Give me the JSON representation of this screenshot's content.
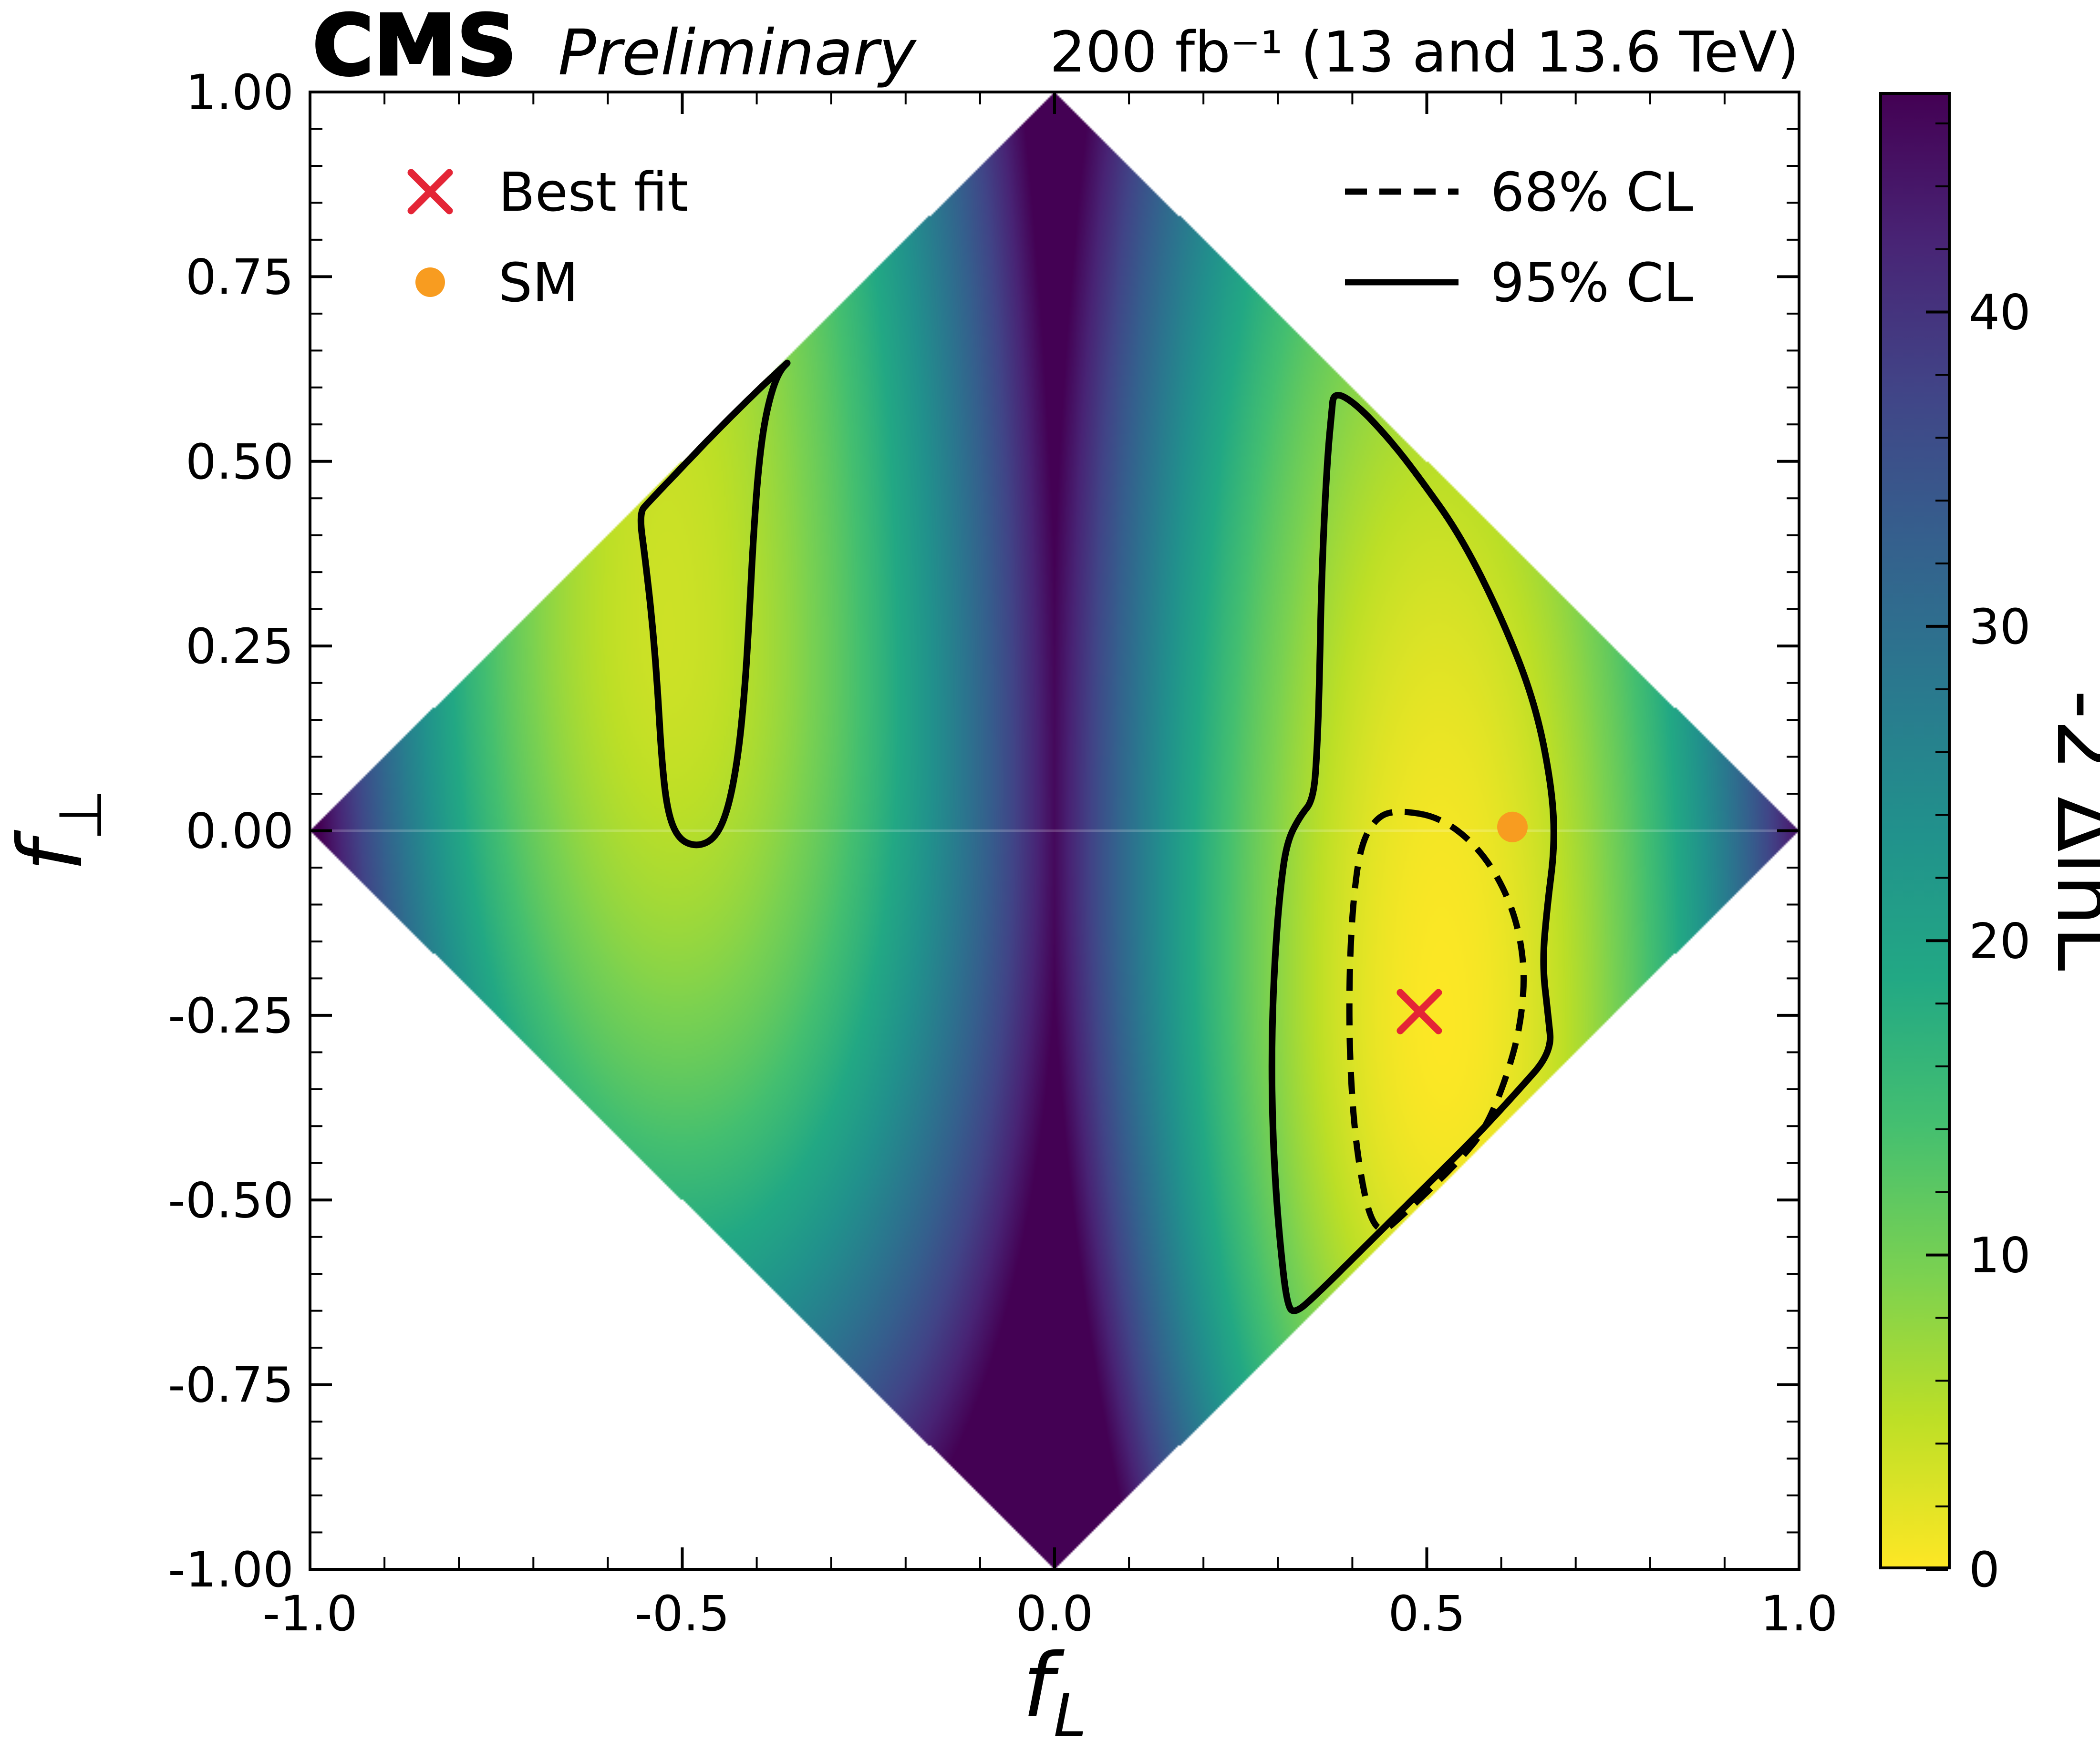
{
  "header": {
    "experiment": "CMS",
    "status": "Preliminary",
    "lumi": "200 fb⁻¹ (13 and 13.6 TeV)"
  },
  "legend": {
    "best_fit_label": "Best fit",
    "sm_label": "SM",
    "cl68_label": "68% CL",
    "cl95_label": "95% CL",
    "best_fit_color": "#e42536",
    "sm_color": "#f89c20",
    "contour_color": "#000000"
  },
  "chart_data": {
    "type": "heatmap",
    "title": "",
    "xlabel": {
      "base": "f",
      "sub": "L"
    },
    "ylabel": {
      "base": "f",
      "sub": "⊥"
    },
    "colorbar_label": "-2 ΔlnL",
    "xlim": [
      -1,
      1
    ],
    "ylim": [
      -1,
      1
    ],
    "xticks": [
      {
        "v": -1,
        "label": "-1.0"
      },
      {
        "v": -0.5,
        "label": "-0.5"
      },
      {
        "v": 0,
        "label": "0.0"
      },
      {
        "v": 0.5,
        "label": "0.5"
      },
      {
        "v": 1,
        "label": "1.0"
      }
    ],
    "yticks": [
      {
        "v": 1,
        "label": "1.00"
      },
      {
        "v": 0.75,
        "label": "0.75"
      },
      {
        "v": 0.5,
        "label": "0.50"
      },
      {
        "v": 0.25,
        "label": "0.25"
      },
      {
        "v": 0,
        "label": "0.00"
      },
      {
        "v": -0.25,
        "label": "-0.25"
      },
      {
        "v": -0.5,
        "label": "-0.50"
      },
      {
        "v": -0.75,
        "label": "-0.75"
      },
      {
        "v": -1,
        "label": "-1.00"
      }
    ],
    "x_minor_step": 0.1,
    "y_minor_step": 0.05,
    "domain": "|fL| + |fperp| <= 1 (diamond region)",
    "colorbar": {
      "vmin": 0,
      "vmax": 47,
      "ticks": [
        0,
        10,
        20,
        30,
        40
      ],
      "minor_step": 2
    },
    "colormap": {
      "name": "viridis (value 0 = yellow, max = dark purple)",
      "stops": [
        [
          0,
          "#440154"
        ],
        [
          0.1,
          "#482475"
        ],
        [
          0.2,
          "#414487"
        ],
        [
          0.3,
          "#355f8d"
        ],
        [
          0.4,
          "#2a788e"
        ],
        [
          0.5,
          "#21918c"
        ],
        [
          0.6,
          "#22a884"
        ],
        [
          0.7,
          "#44bf70"
        ],
        [
          0.8,
          "#7ad151"
        ],
        [
          0.9,
          "#bddf26"
        ],
        [
          1,
          "#fde725"
        ]
      ]
    },
    "best_fit": {
      "fL": 0.49,
      "fperp": -0.245
    },
    "sm_point": {
      "fL": 0.615,
      "fperp": 0.005
    },
    "value_model": {
      "comment": "approximation of -2dlnL used to paint the heatmap",
      "center": 0.52,
      "quad": 163,
      "cubic": 60,
      "width_up": 8.5,
      "width_down": 22,
      "ridge_amp": -0.3,
      "ridge_slope": 2.8,
      "asym": 1.8,
      "asym_slope": 4
    },
    "contours": {
      "cl95": [
        [
          [
            0.375,
            0.595
          ],
          [
            0.405,
            0.578
          ],
          [
            0.45,
            0.53
          ],
          [
            0.49,
            0.478
          ],
          [
            0.545,
            0.4
          ],
          [
            0.6,
            0.29
          ],
          [
            0.645,
            0.175
          ],
          [
            0.668,
            0.06
          ],
          [
            0.672,
            -0.02
          ],
          [
            0.662,
            -0.1
          ],
          [
            0.655,
            -0.18
          ],
          [
            0.663,
            -0.25
          ],
          [
            0.668,
            -0.3
          ],
          [
            0.62,
            -0.355
          ],
          [
            0.565,
            -0.415
          ],
          [
            0.51,
            -0.47
          ],
          [
            0.455,
            -0.525
          ],
          [
            0.4,
            -0.58
          ],
          [
            0.355,
            -0.625
          ],
          [
            0.322,
            -0.655
          ],
          [
            0.312,
            -0.64
          ],
          [
            0.303,
            -0.56
          ],
          [
            0.296,
            -0.47
          ],
          [
            0.292,
            -0.37
          ],
          [
            0.292,
            -0.27
          ],
          [
            0.296,
            -0.17
          ],
          [
            0.303,
            -0.08
          ],
          [
            0.312,
            -0.015
          ],
          [
            0.33,
            0.02
          ],
          [
            0.348,
            0.042
          ],
          [
            0.353,
            0.115
          ],
          [
            0.356,
            0.21
          ],
          [
            0.358,
            0.315
          ],
          [
            0.362,
            0.42
          ],
          [
            0.367,
            0.51
          ],
          [
            0.372,
            0.565
          ]
        ],
        [
          [
            -0.352,
            0.64
          ],
          [
            -0.4,
            0.595
          ],
          [
            -0.455,
            0.54
          ],
          [
            -0.505,
            0.487
          ],
          [
            -0.545,
            0.445
          ],
          [
            -0.558,
            0.43
          ],
          [
            -0.55,
            0.37
          ],
          [
            -0.54,
            0.28
          ],
          [
            -0.533,
            0.19
          ],
          [
            -0.528,
            0.1
          ],
          [
            -0.52,
            0.025
          ],
          [
            -0.505,
            -0.012
          ],
          [
            -0.48,
            -0.022
          ],
          [
            -0.455,
            -0.01
          ],
          [
            -0.438,
            0.03
          ],
          [
            -0.425,
            0.1
          ],
          [
            -0.416,
            0.19
          ],
          [
            -0.41,
            0.29
          ],
          [
            -0.405,
            0.39
          ],
          [
            -0.398,
            0.49
          ],
          [
            -0.388,
            0.565
          ],
          [
            -0.372,
            0.62
          ]
        ]
      ],
      "cl68": [
        [
          [
            0.46,
            0.028
          ],
          [
            0.52,
            0.018
          ],
          [
            0.575,
            -0.028
          ],
          [
            0.615,
            -0.1
          ],
          [
            0.632,
            -0.18
          ],
          [
            0.627,
            -0.26
          ],
          [
            0.607,
            -0.335
          ],
          [
            0.578,
            -0.405
          ],
          [
            0.545,
            -0.445
          ],
          [
            0.505,
            -0.485
          ],
          [
            0.468,
            -0.52
          ],
          [
            0.44,
            -0.545
          ],
          [
            0.423,
            -0.523
          ],
          [
            0.41,
            -0.46
          ],
          [
            0.401,
            -0.385
          ],
          [
            0.396,
            -0.29
          ],
          [
            0.396,
            -0.19
          ],
          [
            0.401,
            -0.095
          ],
          [
            0.411,
            -0.02
          ],
          [
            0.432,
            0.018
          ]
        ]
      ]
    }
  }
}
